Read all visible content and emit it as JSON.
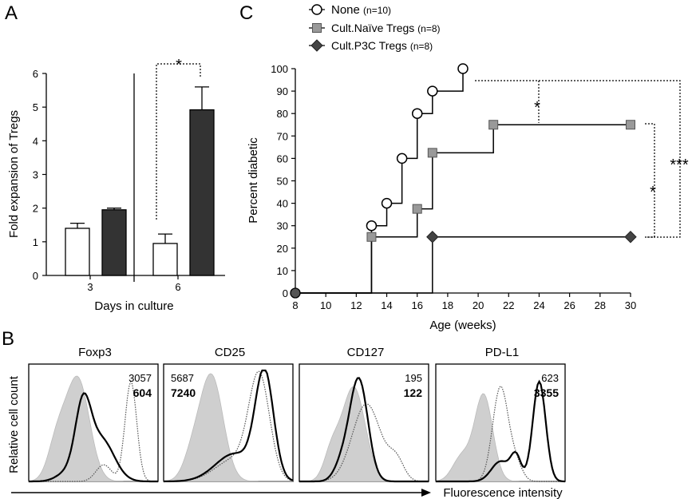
{
  "panels": {
    "a": "A",
    "b": "B",
    "c": "C"
  },
  "chart_data": [
    {
      "type": "bar",
      "panel": "A",
      "xlabel": "Days in culture",
      "ylabel": "Fold expansion of Tregs",
      "ylim": [
        0,
        6
      ],
      "yticks": [
        "0",
        "1",
        "2",
        "3",
        "4",
        "5",
        "6"
      ],
      "categories": [
        "3",
        "6"
      ],
      "series": [
        {
          "values": [
            1.4,
            0.95
          ],
          "errors": [
            0.15,
            0.28
          ],
          "color": "#ffffff"
        },
        {
          "values": [
            1.95,
            4.92
          ],
          "errors": [
            0.05,
            0.68
          ],
          "color": "#333333"
        }
      ],
      "significance": "*"
    },
    {
      "type": "line",
      "panel": "C",
      "xlabel": "Age  (weeks)",
      "ylabel": "Percent diabetic",
      "xlim": [
        8,
        30
      ],
      "ylim": [
        0,
        100
      ],
      "xticks": [
        "8",
        "10",
        "12",
        "14",
        "16",
        "18",
        "20",
        "22",
        "24",
        "26",
        "28",
        "30"
      ],
      "yticks": [
        "0",
        "10",
        "20",
        "30",
        "40",
        "50",
        "60",
        "70",
        "80",
        "90",
        "100"
      ],
      "series": [
        {
          "name": "None",
          "n": "(n=10)",
          "marker": "circle",
          "x": [
            8,
            13,
            14,
            15,
            16,
            17,
            19
          ],
          "y": [
            0,
            30,
            40,
            60,
            80,
            90,
            100
          ]
        },
        {
          "name": "Cult.Naïve Tregs",
          "n": "(n=8)",
          "marker": "square",
          "x": [
            8,
            13,
            16,
            17,
            21,
            30
          ],
          "y": [
            0,
            25,
            37.5,
            62.5,
            75,
            75
          ]
        },
        {
          "name": "Cult.P3C Tregs",
          "n": "(n=8)",
          "marker": "diamond",
          "x": [
            8,
            17,
            30
          ],
          "y": [
            0,
            25,
            25
          ]
        }
      ],
      "significance": [
        "*",
        "*",
        "***"
      ]
    },
    {
      "type": "area",
      "panel": "B",
      "ylabel": "Relative cell count",
      "xlabel": "Fluorescence intensity",
      "histograms": [
        {
          "title": "Foxp3",
          "mfi_dotted": "3057",
          "mfi_solid": "604"
        },
        {
          "title": "CD25",
          "mfi_dotted": "5687",
          "mfi_solid": "7240"
        },
        {
          "title": "CD127",
          "mfi_dotted": "195",
          "mfi_solid": "122"
        },
        {
          "title": "PD-L1",
          "mfi_dotted": "623",
          "mfi_solid": "3355"
        }
      ]
    }
  ]
}
